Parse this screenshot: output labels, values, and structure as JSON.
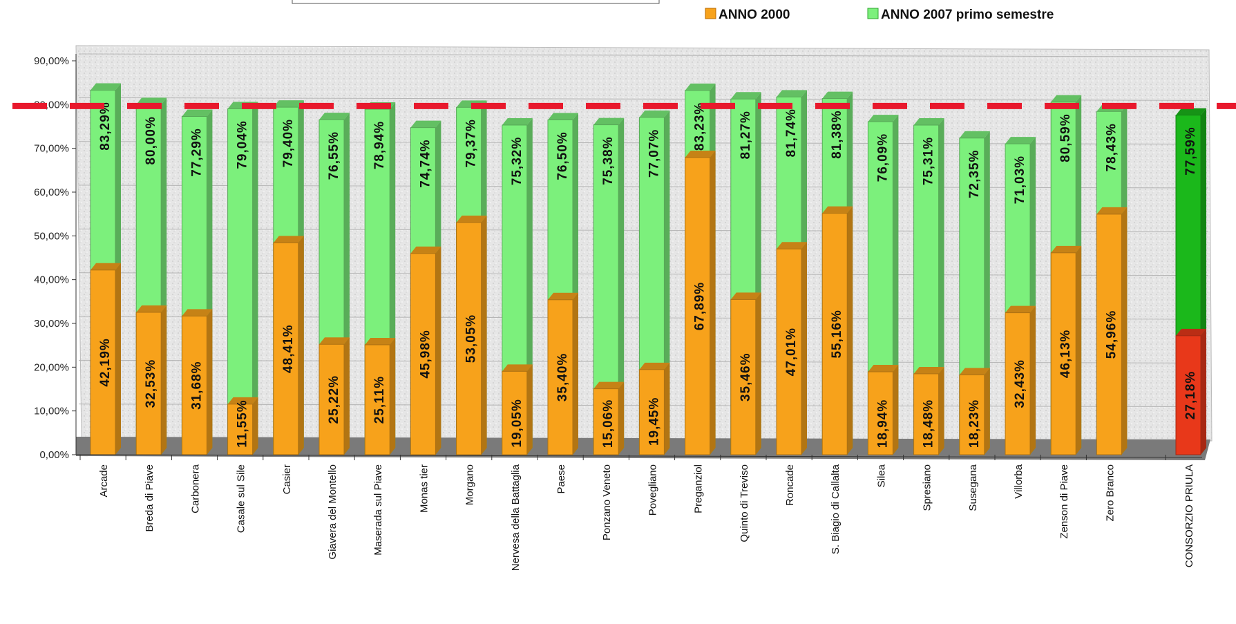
{
  "chart_data": {
    "type": "bar",
    "categories": [
      "Arcade",
      "Breda di Piave",
      "Carbonera",
      "Casale sul Sile",
      "Casier",
      "Giavera del Montello",
      "Maserada sul Piave",
      "Monastier",
      "Morgano",
      "Nervesa della Battaglia",
      "Paese",
      "Ponzano Veneto",
      "Povegliano",
      "Preganziol",
      "Quinto di Treviso",
      "Roncade",
      "S. Biagio di Callalta",
      "Silea",
      "Spresiano",
      "Susegana",
      "Villorba",
      "Zenson di Piave",
      "Zero Branco",
      "CONSORZIO PRIULA"
    ],
    "category_labels": [
      "Arcade",
      "Breda di Piave",
      "Carbonera",
      "Casale sul Sile",
      "Casier",
      "Giavera del Montello",
      "Maserada sul Piave",
      "Monas tier",
      "Morgano",
      "Nervesa della Battaglia",
      "Paese",
      "Ponzano Veneto",
      "Povegliano",
      "Preganziol",
      "Quinto di Treviso",
      "Roncade",
      "S. Biagio di Callalta",
      "Silea",
      "Spresiano",
      "Susegana",
      "Villorba",
      "Zenson di Piave",
      "Zero Branco",
      "CONSORZIO PRIULA"
    ],
    "series": [
      {
        "name": "ANNO 2000",
        "color": "#f7a21b",
        "values": [
          42.19,
          32.53,
          31.68,
          11.55,
          48.41,
          25.22,
          25.11,
          45.98,
          53.05,
          19.05,
          35.4,
          15.06,
          19.45,
          67.89,
          35.46,
          47.01,
          55.16,
          18.94,
          18.48,
          18.23,
          32.43,
          46.13,
          54.96,
          27.18
        ]
      },
      {
        "name": "ANNO 2007 primo semestre",
        "color": "#7cf07c",
        "values": [
          83.29,
          80.0,
          77.29,
          79.04,
          79.4,
          76.55,
          78.94,
          74.74,
          79.37,
          75.32,
          76.5,
          75.38,
          77.07,
          83.23,
          81.27,
          81.74,
          81.38,
          76.09,
          75.31,
          72.35,
          71.03,
          80.59,
          78.43,
          77.59
        ]
      }
    ],
    "data_labels_2000": [
      "42,19%",
      "32,53%",
      "31,68%",
      "11,55%",
      "48,41%",
      "25,22%",
      "25,11%",
      "45,98%",
      "53,05%",
      "19,05%",
      "35,40%",
      "15,06%",
      "19,45%",
      "67,89%",
      "35,46%",
      "47,01%",
      "55,16%",
      "18,94%",
      "18,48%",
      "18,23%",
      "32,43%",
      "46,13%",
      "54,96%",
      "27,18%"
    ],
    "data_labels_2007": [
      "83,29%",
      "80,00%",
      "77,29%",
      "79,04%",
      "79,40%",
      "76,55%",
      "78,94%",
      "74,74%",
      "79,37%",
      "75,32%",
      "76,50%",
      "75,38%",
      "77,07%",
      "83,23%",
      "81,27%",
      "81,74%",
      "81,38%",
      "76,09%",
      "75,31%",
      "72,35%",
      "71,03%",
      "80,59%",
      "78,43%",
      "77,59%"
    ],
    "highlight": {
      "category": "CONSORZIO PRIULA",
      "color_2000": "#e8381a",
      "color_2007": "#1bb81b"
    },
    "y_ticks": [
      "0,00%",
      "10,00%",
      "20,00%",
      "30,00%",
      "40,00%",
      "50,00%",
      "60,00%",
      "70,00%",
      "80,00%",
      "90,00%"
    ],
    "ylim": [
      0,
      90
    ],
    "reference_line": {
      "value": 80,
      "color": "#e8182c",
      "style": "dashed"
    },
    "grid": true,
    "legend_position": "top-right",
    "title": "",
    "xlabel": "",
    "ylabel": ""
  }
}
